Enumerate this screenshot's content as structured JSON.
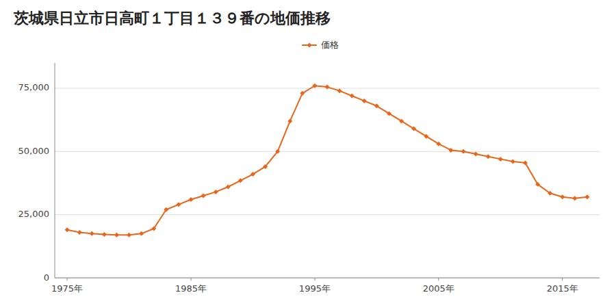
{
  "chart_data": {
    "type": "line",
    "title": "茨城県日立市日高町１丁目１３９番の地価推移",
    "x": [
      1975,
      1976,
      1977,
      1978,
      1979,
      1980,
      1981,
      1982,
      1983,
      1984,
      1985,
      1986,
      1987,
      1988,
      1989,
      1990,
      1991,
      1992,
      1993,
      1994,
      1995,
      1996,
      1997,
      1998,
      1999,
      2000,
      2001,
      2002,
      2003,
      2004,
      2005,
      2006,
      2007,
      2008,
      2009,
      2010,
      2011,
      2012,
      2013,
      2014,
      2015,
      2016,
      2017
    ],
    "series": [
      {
        "name": "価格",
        "color": "#E8651A",
        "marker": "diamond",
        "line_style": "solid",
        "values": [
          19000,
          18000,
          17500,
          17200,
          17000,
          17000,
          17500,
          19500,
          27000,
          29000,
          31000,
          32500,
          34000,
          36000,
          38500,
          41000,
          44000,
          50000,
          62000,
          73000,
          76000,
          75500,
          74000,
          72000,
          70000,
          68000,
          65000,
          62000,
          59000,
          56000,
          53000,
          50500,
          50000,
          49000,
          48000,
          47000,
          46000,
          45500,
          37000,
          33500,
          32000,
          31500,
          32000
        ]
      }
    ],
    "xlim": [
      1974,
      2018
    ],
    "ylim": [
      0,
      85000
    ],
    "xticks": [
      {
        "value": 1975,
        "label": "1975年"
      },
      {
        "value": 1985,
        "label": "1985年"
      },
      {
        "value": 1995,
        "label": "1995年"
      },
      {
        "value": 2005,
        "label": "2005年"
      },
      {
        "value": 2015,
        "label": "2015年"
      }
    ],
    "yticks": [
      0,
      {
        "value": 25000,
        "label": "25,000"
      },
      {
        "value": 50000,
        "label": "50,000"
      },
      {
        "value": 75000,
        "label": "75,000"
      }
    ],
    "grid": "y",
    "legend": "top"
  }
}
